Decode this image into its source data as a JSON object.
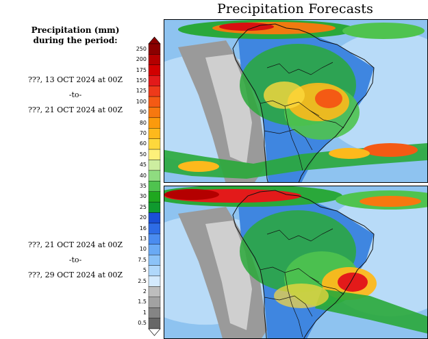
{
  "title": "Precipitation Forecasts",
  "legend": {
    "header_line1": "Precipitation (mm)",
    "header_line2": "during the period:",
    "levels": [
      "250",
      "200",
      "175",
      "150",
      "125",
      "100",
      "90",
      "80",
      "70",
      "60",
      "50",
      "45",
      "40",
      "35",
      "30",
      "25",
      "20",
      "16",
      "13",
      "10",
      "7.5",
      "5",
      "2.5",
      "2",
      "1.5",
      "1",
      "0.5"
    ],
    "colors": [
      "#8b0000",
      "#b40000",
      "#d10000",
      "#e31a1a",
      "#ee3a1a",
      "#f45a14",
      "#f7780f",
      "#fb9a0c",
      "#fdb91c",
      "#fdd83c",
      "#fdf07a",
      "#cdeea0",
      "#8fdc80",
      "#4fc34f",
      "#1fa71f",
      "#0f9a2e",
      "#1a4fd6",
      "#2e6ce6",
      "#4a8cf0",
      "#6aaaf5",
      "#8cc3f8",
      "#b0d8fb",
      "#d4eafd",
      "#bdbdbd",
      "#a2a2a2",
      "#858585",
      "#676767"
    ]
  },
  "panels": [
    {
      "start": "???, 13 OCT 2024 at 00Z",
      "sep": "-to-",
      "end": "???, 21 OCT 2024 at 00Z"
    },
    {
      "start": "???, 21 OCT 2024 at 00Z",
      "sep": "-to-",
      "end": "???, 29 OCT 2024 at 00Z"
    }
  ]
}
